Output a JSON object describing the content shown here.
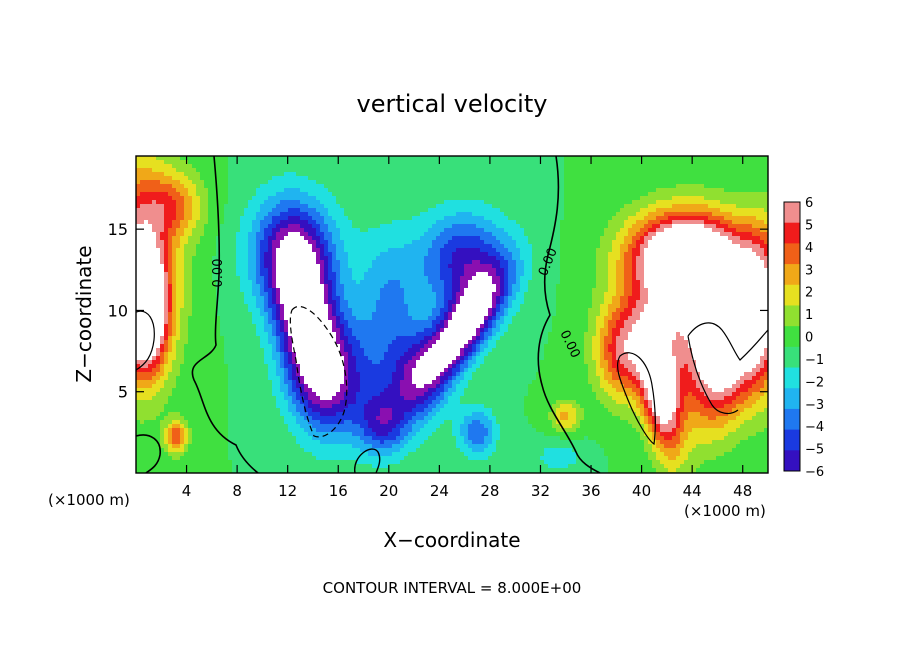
{
  "chart_data": {
    "type": "heatmap",
    "title": "vertical velocity",
    "xlabel": "X−coordinate",
    "ylabel": "Z−coordinate",
    "x_unit_left": "(×1000 m)",
    "x_unit_right": "(×1000 m)",
    "xlim": [
      0,
      50
    ],
    "ylim": [
      0,
      19.5
    ],
    "x_ticks": [
      {
        "value": 4,
        "label": "4"
      },
      {
        "value": 8,
        "label": "8"
      },
      {
        "value": 12,
        "label": "12"
      },
      {
        "value": 16,
        "label": "16"
      },
      {
        "value": 20,
        "label": "20"
      },
      {
        "value": 24,
        "label": "24"
      },
      {
        "value": 28,
        "label": "28"
      },
      {
        "value": 32,
        "label": "32"
      },
      {
        "value": 36,
        "label": "36"
      },
      {
        "value": 40,
        "label": "40"
      },
      {
        "value": 44,
        "label": "44"
      },
      {
        "value": 48,
        "label": "48"
      }
    ],
    "y_ticks": [
      {
        "value": 5,
        "label": "5"
      },
      {
        "value": 10,
        "label": "10"
      },
      {
        "value": 15,
        "label": "15"
      }
    ],
    "colorbar": {
      "range": [
        -6,
        6
      ],
      "ticks": [
        {
          "value": 6,
          "label": "6"
        },
        {
          "value": 5,
          "label": "5"
        },
        {
          "value": 4,
          "label": "4"
        },
        {
          "value": 3,
          "label": "3"
        },
        {
          "value": 2,
          "label": "2"
        },
        {
          "value": 1,
          "label": "1"
        },
        {
          "value": 0,
          "label": "0"
        },
        {
          "value": -1,
          "label": "−1"
        },
        {
          "value": -2,
          "label": "−2"
        },
        {
          "value": -3,
          "label": "−3"
        },
        {
          "value": -4,
          "label": "−4"
        },
        {
          "value": -5,
          "label": "−5"
        },
        {
          "value": -6,
          "label": "−6"
        }
      ],
      "colors": [
        "#8a0fb0",
        "#3410c0",
        "#1a3ae0",
        "#1f78f0",
        "#20b4f0",
        "#20e0e0",
        "#38e07a",
        "#40e040",
        "#90e030",
        "#e6e020",
        "#f0a818",
        "#f06018",
        "#f01c1c",
        "#f08e8e"
      ],
      "over_color": "#ffffff",
      "under_color": "#ffffff"
    },
    "contours": [
      {
        "label": "0.00",
        "value": 0
      },
      {
        "label": "0.00",
        "value": 0
      },
      {
        "label": "0.00",
        "value": 0
      }
    ],
    "features": [
      {
        "kind": "updraft",
        "x": 1,
        "z": 13.5,
        "w": 5
      },
      {
        "kind": "updraft",
        "x": 44.5,
        "z": 11.5,
        "w": 6
      },
      {
        "kind": "updraft",
        "x": 41.5,
        "z": 5,
        "w": 5
      },
      {
        "kind": "updraft",
        "x": 3.2,
        "z": 2,
        "w": 6
      },
      {
        "kind": "downdraft",
        "x": 13.5,
        "z": 9,
        "w": -6
      },
      {
        "kind": "downdraft",
        "x": 25.5,
        "z": 9,
        "w": -6
      },
      {
        "kind": "downdraft",
        "x": 20,
        "z": 4,
        "w": -4
      }
    ],
    "footer": "CONTOUR INTERVAL = 8.000E+00"
  }
}
